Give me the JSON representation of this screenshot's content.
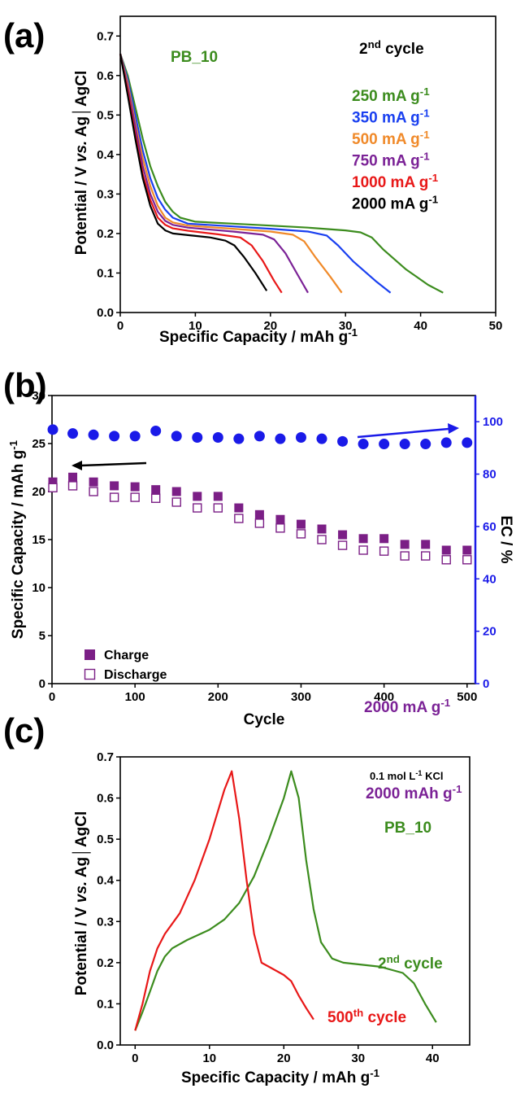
{
  "panels": {
    "a": "(a)",
    "b": "(b)",
    "c": "(c)"
  },
  "chart_data": [
    {
      "id": "a",
      "type": "line",
      "xlabel_main": "Specific Capacity / mAh g",
      "xlabel_sup": "-1",
      "ylabel_pre": "Potential / V ",
      "ylabel_italic": "vs.",
      "ylabel_post": " Ag",
      "ylabel_end": "AgCl",
      "xlim": [
        0,
        50
      ],
      "ylim": [
        0,
        0.75
      ],
      "xticks": [
        0,
        10,
        20,
        30,
        40,
        50
      ],
      "yticks": [
        0.0,
        0.1,
        0.2,
        0.3,
        0.4,
        0.5,
        0.6,
        0.7
      ],
      "tick_decimals": 1,
      "annotations": [
        {
          "text": "PB_10",
          "color": "#3c8c1e"
        },
        {
          "text": "2",
          "sup": "nd",
          "post": " cycle",
          "color": "#000000"
        }
      ],
      "series": [
        {
          "name": "250 mA g",
          "sup": "-1",
          "color": "#3c8c1e",
          "points": [
            [
              0,
              0.655
            ],
            [
              1,
              0.6
            ],
            [
              2,
              0.52
            ],
            [
              3,
              0.44
            ],
            [
              4,
              0.37
            ],
            [
              5,
              0.32
            ],
            [
              6,
              0.28
            ],
            [
              7,
              0.255
            ],
            [
              8,
              0.24
            ],
            [
              10,
              0.23
            ],
            [
              15,
              0.225
            ],
            [
              20,
              0.22
            ],
            [
              25,
              0.215
            ],
            [
              30,
              0.208
            ],
            [
              32,
              0.203
            ],
            [
              33.5,
              0.19
            ],
            [
              35,
              0.16
            ],
            [
              38,
              0.11
            ],
            [
              41,
              0.07
            ],
            [
              43,
              0.05
            ]
          ]
        },
        {
          "name": "350 mA g",
          "sup": "-1",
          "color": "#1a40f0",
          "points": [
            [
              0,
              0.655
            ],
            [
              1,
              0.59
            ],
            [
              2,
              0.5
            ],
            [
              3,
              0.41
            ],
            [
              4,
              0.34
            ],
            [
              5,
              0.29
            ],
            [
              6,
              0.26
            ],
            [
              7,
              0.24
            ],
            [
              9,
              0.225
            ],
            [
              15,
              0.218
            ],
            [
              20,
              0.212
            ],
            [
              25,
              0.205
            ],
            [
              27.5,
              0.195
            ],
            [
              29,
              0.17
            ],
            [
              31,
              0.13
            ],
            [
              34,
              0.08
            ],
            [
              36,
              0.05
            ]
          ]
        },
        {
          "name": "500 mA g",
          "sup": "-1",
          "color": "#f08a2a",
          "points": [
            [
              0,
              0.655
            ],
            [
              1,
              0.58
            ],
            [
              2,
              0.48
            ],
            [
              3,
              0.39
            ],
            [
              4,
              0.32
            ],
            [
              5,
              0.27
            ],
            [
              6,
              0.24
            ],
            [
              7,
              0.228
            ],
            [
              9,
              0.22
            ],
            [
              15,
              0.212
            ],
            [
              20,
              0.205
            ],
            [
              23,
              0.197
            ],
            [
              24.5,
              0.18
            ],
            [
              26,
              0.14
            ],
            [
              28,
              0.09
            ],
            [
              29.5,
              0.05
            ]
          ]
        },
        {
          "name": "750 mA g",
          "sup": "-1",
          "color": "#7b2296",
          "points": [
            [
              0,
              0.655
            ],
            [
              1,
              0.57
            ],
            [
              2,
              0.47
            ],
            [
              3,
              0.37
            ],
            [
              4,
              0.3
            ],
            [
              5,
              0.255
            ],
            [
              6,
              0.232
            ],
            [
              7,
              0.222
            ],
            [
              9,
              0.215
            ],
            [
              15,
              0.205
            ],
            [
              19,
              0.197
            ],
            [
              20.5,
              0.185
            ],
            [
              22,
              0.15
            ],
            [
              23.5,
              0.1
            ],
            [
              25,
              0.05
            ]
          ]
        },
        {
          "name": "1000 mA g",
          "sup": "-1",
          "color": "#e81818",
          "points": [
            [
              0,
              0.655
            ],
            [
              1,
              0.56
            ],
            [
              2,
              0.45
            ],
            [
              3,
              0.35
            ],
            [
              4,
              0.285
            ],
            [
              5,
              0.24
            ],
            [
              6,
              0.222
            ],
            [
              7,
              0.213
            ],
            [
              9,
              0.207
            ],
            [
              13,
              0.198
            ],
            [
              16,
              0.19
            ],
            [
              17.5,
              0.17
            ],
            [
              19,
              0.13
            ],
            [
              20.5,
              0.08
            ],
            [
              21.5,
              0.05
            ]
          ]
        },
        {
          "name": "2000 mA g",
          "sup": "-1",
          "color": "#000000",
          "points": [
            [
              0,
              0.655
            ],
            [
              1,
              0.55
            ],
            [
              2,
              0.44
            ],
            [
              3,
              0.34
            ],
            [
              4,
              0.27
            ],
            [
              5,
              0.225
            ],
            [
              6,
              0.208
            ],
            [
              7,
              0.2
            ],
            [
              9,
              0.196
            ],
            [
              12,
              0.19
            ],
            [
              14,
              0.182
            ],
            [
              15.2,
              0.17
            ],
            [
              16.5,
              0.14
            ],
            [
              18,
              0.1
            ],
            [
              19.5,
              0.055
            ]
          ]
        }
      ]
    },
    {
      "id": "b",
      "type": "scatter",
      "xlabel": "Cycle",
      "ylabel_main": "Specific Capacity / mAh g",
      "ylabel_sup": "-1",
      "y2label": "EC / %",
      "xlim": [
        0,
        510
      ],
      "ylim": [
        0,
        30
      ],
      "y2lim": [
        0,
        110
      ],
      "xticks": [
        0,
        100,
        200,
        300,
        400,
        500
      ],
      "yticks": [
        0,
        5,
        10,
        15,
        20,
        25,
        30
      ],
      "y2ticks": [
        0,
        20,
        40,
        60,
        80,
        100
      ],
      "x": [
        1,
        25,
        50,
        75,
        100,
        125,
        150,
        175,
        200,
        225,
        250,
        275,
        300,
        325,
        350,
        375,
        400,
        425,
        450,
        475,
        500
      ],
      "legend": {
        "position": "bottom-left",
        "charge": "Charge",
        "discharge": "Discharge"
      },
      "annotation": {
        "text": "2000 mA g",
        "sup": "-1",
        "color": "#7b2296"
      },
      "series": [
        {
          "name": "Charge",
          "marker": "filled-square",
          "color": "#7b1f86",
          "axis": "left",
          "values": [
            21.0,
            21.5,
            21.0,
            20.6,
            20.5,
            20.2,
            20.0,
            19.5,
            19.5,
            18.3,
            17.6,
            17.1,
            16.6,
            16.1,
            15.5,
            15.1,
            15.1,
            14.5,
            14.5,
            13.9,
            13.9
          ]
        },
        {
          "name": "Discharge",
          "marker": "open-square",
          "color": "#7b1f86",
          "axis": "left",
          "values": [
            20.4,
            20.6,
            20.0,
            19.4,
            19.4,
            19.3,
            18.9,
            18.3,
            18.3,
            17.2,
            16.7,
            16.2,
            15.6,
            15.0,
            14.4,
            13.9,
            13.8,
            13.3,
            13.3,
            12.9,
            12.9
          ]
        },
        {
          "name": "EC",
          "marker": "filled-circle",
          "color": "#1a1ae8",
          "axis": "right",
          "values": [
            97,
            95.5,
            95,
            94.5,
            94.5,
            96.5,
            94.5,
            94,
            94,
            93.5,
            94.5,
            93.5,
            94,
            93.5,
            92.5,
            91.5,
            91.5,
            91.5,
            91.5,
            92,
            92
          ]
        }
      ]
    },
    {
      "id": "c",
      "type": "line",
      "xlabel_main": "Specific Capacity / mAh g",
      "xlabel_sup": "-1",
      "ylabel_pre": "Potential / V ",
      "ylabel_italic": "vs.",
      "ylabel_post": " Ag",
      "ylabel_end": "AgCl",
      "xlim": [
        -2,
        45
      ],
      "ylim": [
        0,
        0.7
      ],
      "xticks": [
        0,
        10,
        20,
        30,
        40
      ],
      "yticks": [
        0.0,
        0.1,
        0.2,
        0.3,
        0.4,
        0.5,
        0.6,
        0.7
      ],
      "tick_decimals": 1,
      "annotations": [
        {
          "text": "0.1 mol L",
          "sup": "-1",
          "post": " KCl",
          "color": "#000000"
        },
        {
          "text": "2000 mAh g",
          "sup": "-1",
          "color": "#7b2296"
        },
        {
          "text": "PB_10",
          "color": "#3c8c1e"
        }
      ],
      "series": [
        {
          "name": "2",
          "sup": "nd",
          "post": " cycle",
          "color": "#3c8c1e",
          "points": [
            [
              0,
              0.035
            ],
            [
              1,
              0.08
            ],
            [
              2,
              0.13
            ],
            [
              3,
              0.18
            ],
            [
              4,
              0.215
            ],
            [
              5,
              0.235
            ],
            [
              7,
              0.255
            ],
            [
              10,
              0.28
            ],
            [
              12,
              0.305
            ],
            [
              14,
              0.345
            ],
            [
              16,
              0.41
            ],
            [
              18,
              0.5
            ],
            [
              20,
              0.6
            ],
            [
              21,
              0.665
            ],
            [
              22,
              0.6
            ],
            [
              23,
              0.45
            ],
            [
              24,
              0.33
            ],
            [
              25,
              0.25
            ],
            [
              26.5,
              0.21
            ],
            [
              28,
              0.2
            ],
            [
              33,
              0.19
            ],
            [
              36,
              0.175
            ],
            [
              37.5,
              0.15
            ],
            [
              39,
              0.1
            ],
            [
              40.5,
              0.055
            ]
          ]
        },
        {
          "name": "500",
          "sup": "th",
          "post": " cycle",
          "color": "#e81818",
          "points": [
            [
              0,
              0.035
            ],
            [
              1,
              0.1
            ],
            [
              2,
              0.18
            ],
            [
              3,
              0.235
            ],
            [
              4,
              0.27
            ],
            [
              6,
              0.32
            ],
            [
              8,
              0.4
            ],
            [
              10,
              0.5
            ],
            [
              12,
              0.62
            ],
            [
              13,
              0.665
            ],
            [
              14,
              0.55
            ],
            [
              15,
              0.4
            ],
            [
              16,
              0.27
            ],
            [
              17,
              0.2
            ],
            [
              18,
              0.19
            ],
            [
              20,
              0.17
            ],
            [
              21,
              0.155
            ],
            [
              22,
              0.12
            ],
            [
              23,
              0.09
            ],
            [
              24,
              0.062
            ]
          ]
        }
      ]
    }
  ]
}
